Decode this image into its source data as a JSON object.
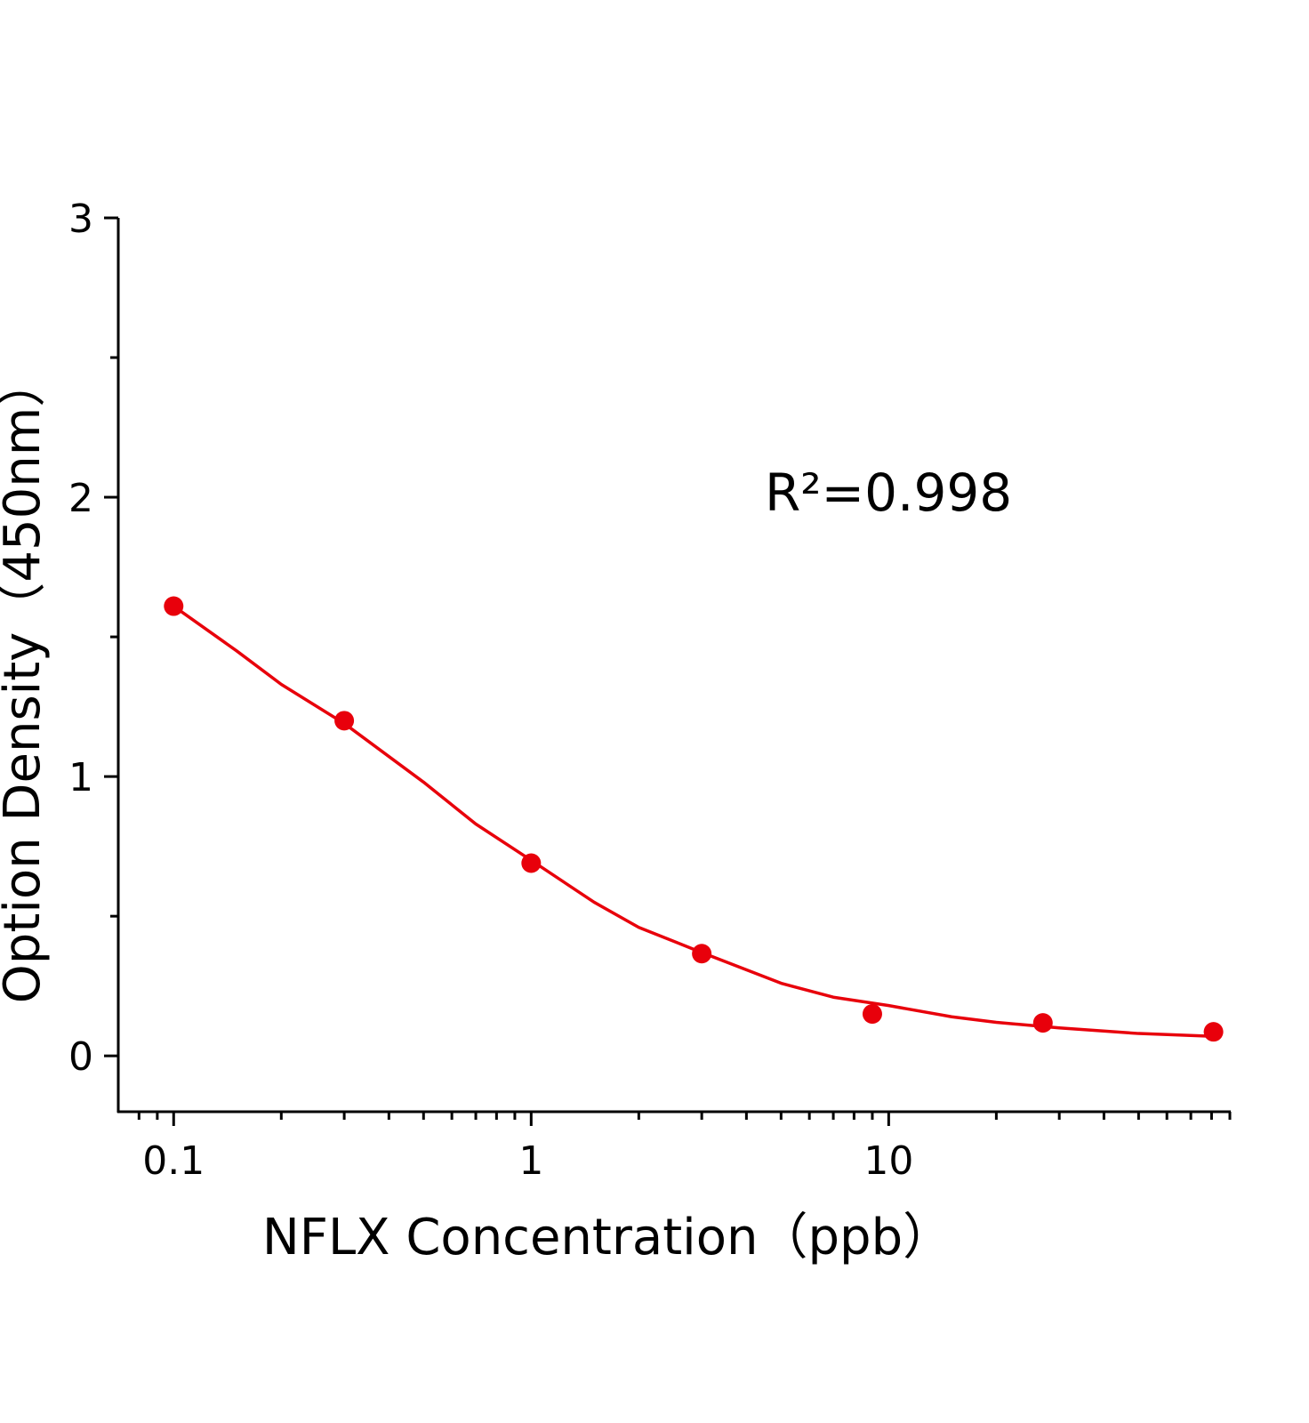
{
  "chart_data": {
    "type": "scatter",
    "xlabel": "NFLX  Concentration（ppb）",
    "ylabel": "Option Density（450nm）",
    "annotation": "R²=0.998",
    "xlog": true,
    "xlim": [
      0.07,
      90
    ],
    "ylim": [
      -0.2,
      3
    ],
    "xticks": [
      0.1,
      1,
      10
    ],
    "xminorticks": [
      0.08,
      0.09,
      0.2,
      0.3,
      0.4,
      0.5,
      0.6,
      0.7,
      0.8,
      0.9,
      2,
      3,
      4,
      5,
      6,
      7,
      8,
      9,
      20,
      30,
      40,
      50,
      60,
      70,
      80,
      90
    ],
    "yticks": [
      0,
      1,
      2,
      3
    ],
    "yminorticks": [
      0.5,
      1.5,
      2.5
    ],
    "color": "#e8000b",
    "x": [
      0.1,
      0.3,
      1,
      3,
      9,
      27,
      81
    ],
    "values": [
      1.61,
      1.2,
      0.69,
      0.366,
      0.15,
      0.118,
      0.086
    ],
    "fit": {
      "x": [
        0.1,
        0.15,
        0.2,
        0.3,
        0.5,
        0.7,
        1,
        1.5,
        2,
        3,
        5,
        7,
        10,
        15,
        20,
        30,
        50,
        81
      ],
      "values": [
        1.61,
        1.45,
        1.33,
        1.19,
        0.98,
        0.83,
        0.7,
        0.55,
        0.46,
        0.37,
        0.26,
        0.21,
        0.18,
        0.14,
        0.12,
        0.1,
        0.08,
        0.07
      ]
    }
  }
}
